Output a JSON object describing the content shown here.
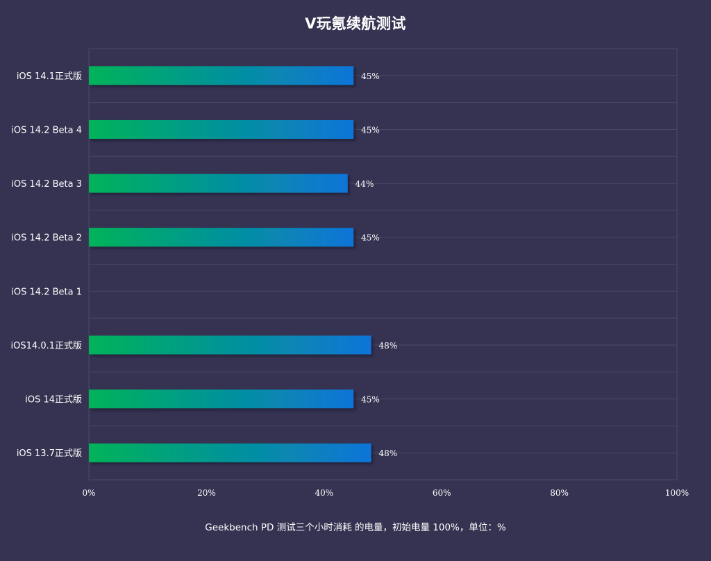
{
  "chart_data": {
    "type": "bar",
    "orientation": "horizontal",
    "title": "V玩氪续航测试",
    "xlabel": "Geekbench PD 测试三个小时消耗 的电量，初始电量 100%，单位：%",
    "ylabel": "",
    "categories": [
      "iOS 14.1正式版",
      "iOS 14.2 Beta 4",
      "iOS 14.2 Beta 3",
      "iOS 14.2 Beta 2",
      "iOS 14.2 Beta 1",
      "iOS14.0.1正式版",
      "iOS 14正式版",
      "iOS 13.7正式版"
    ],
    "values": [
      45,
      45,
      44,
      45,
      null,
      48,
      45,
      48
    ],
    "value_labels": [
      "45%",
      "45%",
      "44%",
      "45%",
      "",
      "48%",
      "45%",
      "48%"
    ],
    "xlim": [
      0,
      100
    ],
    "xticks": [
      "0%",
      "20%",
      "40%",
      "60%",
      "80%",
      "100%"
    ],
    "xtick_values": [
      0,
      20,
      40,
      60,
      80,
      100
    ],
    "grid": true,
    "legend": "none"
  },
  "colors": {
    "background": "#353351",
    "grid": "#4a4866",
    "bar_gradient_start": "#00b359",
    "bar_gradient_end": "#0a74d8",
    "text": "#ffffff"
  }
}
